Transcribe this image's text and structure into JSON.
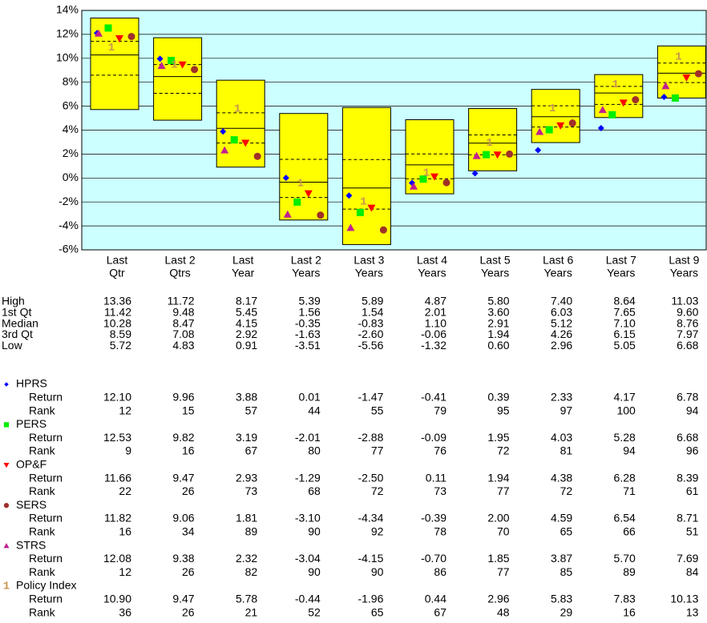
{
  "chart_data": {
    "type": "box",
    "categories": [
      [
        "Last",
        "Qtr"
      ],
      [
        "Last 2",
        "Qtrs"
      ],
      [
        "Last",
        "Year"
      ],
      [
        "Last 2",
        "Years"
      ],
      [
        "Last 3",
        "Years"
      ],
      [
        "Last 4",
        "Years"
      ],
      [
        "Last 5",
        "Years"
      ],
      [
        "Last 6",
        "Years"
      ],
      [
        "Last 7",
        "Years"
      ],
      [
        "Last 9",
        "Years"
      ]
    ],
    "ylim": [
      -6,
      14
    ],
    "yticks": [
      {
        "value": -6,
        "label": "-6%"
      },
      {
        "value": -4,
        "label": "-4%"
      },
      {
        "value": -2,
        "label": "-2%"
      },
      {
        "value": 0,
        "label": "0%"
      },
      {
        "value": 2,
        "label": "2%"
      },
      {
        "value": 4,
        "label": "4%"
      },
      {
        "value": 6,
        "label": "6%"
      },
      {
        "value": 8,
        "label": "8%"
      },
      {
        "value": 10,
        "label": "10%"
      },
      {
        "value": 12,
        "label": "12%"
      },
      {
        "value": 14,
        "label": "14%"
      }
    ],
    "grid": true,
    "box_color": "#ffff00",
    "background": "#ccffff",
    "stats": [
      {
        "name": "High",
        "values": [
          13.36,
          11.72,
          8.17,
          5.39,
          5.89,
          4.87,
          5.8,
          7.4,
          8.64,
          11.03
        ],
        "value_labels": [
          "13.36",
          "11.72",
          "8.17",
          "5.39",
          "5.89",
          "4.87",
          "5.80",
          "7.40",
          "8.64",
          "11.03"
        ]
      },
      {
        "name": "1st Qt",
        "values": [
          11.42,
          9.48,
          5.45,
          1.56,
          1.54,
          2.01,
          3.6,
          6.03,
          7.65,
          9.6
        ],
        "value_labels": [
          "11.42",
          "9.48",
          "5.45",
          "1.56",
          "1.54",
          "2.01",
          "3.60",
          "6.03",
          "7.65",
          "9.60"
        ]
      },
      {
        "name": "Median",
        "values": [
          10.28,
          8.47,
          4.15,
          -0.35,
          -0.83,
          1.1,
          2.91,
          5.12,
          7.1,
          8.76
        ],
        "value_labels": [
          "10.28",
          "8.47",
          "4.15",
          "-0.35",
          "-0.83",
          "1.10",
          "2.91",
          "5.12",
          "7.10",
          "8.76"
        ]
      },
      {
        "name": "3rd Qt",
        "values": [
          8.59,
          7.08,
          2.92,
          -1.63,
          -2.6,
          -0.06,
          1.94,
          4.26,
          6.15,
          7.97
        ],
        "value_labels": [
          "8.59",
          "7.08",
          "2.92",
          "-1.63",
          "-2.60",
          "-0.06",
          "1.94",
          "4.26",
          "6.15",
          "7.97"
        ]
      },
      {
        "name": "Low",
        "values": [
          5.72,
          4.83,
          0.91,
          -3.51,
          -5.56,
          -1.32,
          0.6,
          2.96,
          5.05,
          6.68
        ],
        "value_labels": [
          "5.72",
          "4.83",
          "0.91",
          "-3.51",
          "-5.56",
          "-1.32",
          "0.60",
          "2.96",
          "5.05",
          "6.68"
        ]
      }
    ],
    "row_labels": [
      "Return",
      "Rank"
    ],
    "series": [
      {
        "name": "HPRS",
        "color": "#0000ff",
        "marker": "diamond",
        "values": [
          12.1,
          9.96,
          3.88,
          0.01,
          -1.47,
          -0.41,
          0.39,
          2.33,
          4.17,
          6.78
        ],
        "value_labels": [
          "12.10",
          "9.96",
          "3.88",
          "0.01",
          "-1.47",
          "-0.41",
          "0.39",
          "2.33",
          "4.17",
          "6.78"
        ],
        "ranks": [
          12,
          15,
          57,
          44,
          55,
          79,
          95,
          97,
          100,
          94
        ]
      },
      {
        "name": "PERS",
        "color": "#00ee00",
        "marker": "square",
        "values": [
          12.53,
          9.82,
          3.19,
          -2.01,
          -2.88,
          -0.09,
          1.95,
          4.03,
          5.28,
          6.68
        ],
        "value_labels": [
          "12.53",
          "9.82",
          "3.19",
          "-2.01",
          "-2.88",
          "-0.09",
          "1.95",
          "4.03",
          "5.28",
          "6.68"
        ],
        "ranks": [
          9,
          16,
          67,
          80,
          77,
          76,
          72,
          81,
          94,
          96
        ]
      },
      {
        "name": "OP&F",
        "color": "#ff0000",
        "marker": "triangle-down",
        "values": [
          11.66,
          9.47,
          2.93,
          -1.29,
          -2.5,
          0.11,
          1.94,
          4.38,
          6.28,
          8.39
        ],
        "value_labels": [
          "11.66",
          "9.47",
          "2.93",
          "-1.29",
          "-2.50",
          "0.11",
          "1.94",
          "4.38",
          "6.28",
          "8.39"
        ],
        "ranks": [
          22,
          26,
          73,
          68,
          72,
          73,
          77,
          72,
          71,
          61
        ]
      },
      {
        "name": "SERS",
        "color": "#a0302a",
        "marker": "circle",
        "values": [
          11.82,
          9.06,
          1.81,
          -3.1,
          -4.34,
          -0.39,
          2.0,
          4.59,
          6.54,
          8.71
        ],
        "value_labels": [
          "11.82",
          "9.06",
          "1.81",
          "-3.10",
          "-4.34",
          "-0.39",
          "2.00",
          "4.59",
          "6.54",
          "8.71"
        ],
        "ranks": [
          16,
          34,
          89,
          90,
          92,
          78,
          70,
          65,
          66,
          51
        ]
      },
      {
        "name": "STRS",
        "color": "#c0208f",
        "marker": "triangle-up",
        "values": [
          12.08,
          9.38,
          2.32,
          -3.04,
          -4.15,
          -0.7,
          1.85,
          3.87,
          5.7,
          7.69
        ],
        "value_labels": [
          "12.08",
          "9.38",
          "2.32",
          "-3.04",
          "-4.15",
          "-0.70",
          "1.85",
          "3.87",
          "5.70",
          "7.69"
        ],
        "ranks": [
          12,
          26,
          82,
          90,
          90,
          86,
          77,
          85,
          89,
          84
        ]
      },
      {
        "name": "Policy Index",
        "color": "#c89650",
        "marker": "text",
        "symbol": "1",
        "values": [
          10.9,
          9.47,
          5.78,
          -0.44,
          -1.96,
          0.44,
          2.96,
          5.83,
          7.83,
          10.13
        ],
        "value_labels": [
          "10.90",
          "9.47",
          "5.78",
          "-0.44",
          "-1.96",
          "0.44",
          "2.96",
          "5.83",
          "7.83",
          "10.13"
        ],
        "ranks": [
          36,
          26,
          21,
          52,
          65,
          67,
          48,
          29,
          16,
          13
        ]
      }
    ]
  }
}
